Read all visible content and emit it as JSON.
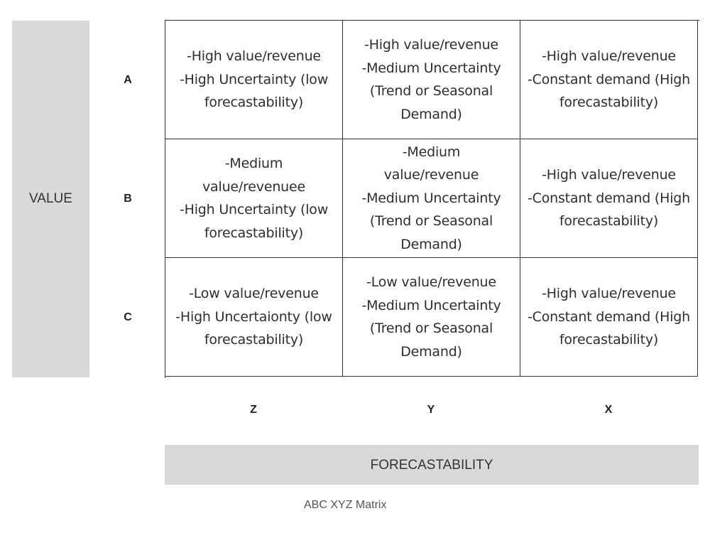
{
  "axes": {
    "vertical_label": "VALUE",
    "horizontal_label": "FORECASTABILITY"
  },
  "rows": [
    "A",
    "B",
    "C"
  ],
  "columns": [
    "Z",
    "Y",
    "X"
  ],
  "cells": [
    [
      {
        "lines": [
          "-High value/revenue",
          "-High Uncertainty (low",
          "forecastability)"
        ]
      },
      {
        "lines": [
          "-High value/revenue",
          "-Medium Uncertainty",
          "(Trend or Seasonal",
          "Demand)"
        ]
      },
      {
        "lines": [
          "-High value/revenue",
          "-Constant demand (High",
          "forecastability)"
        ]
      }
    ],
    [
      {
        "lines": [
          "-Medium",
          "value/revenuee",
          "-High Uncertainty (low",
          "forecastability)"
        ]
      },
      {
        "lines": [
          "-Medium",
          "value/revenue",
          "-Medium Uncertainty",
          "(Trend or Seasonal",
          "Demand)"
        ]
      },
      {
        "lines": [
          "-High value/revenue",
          "-Constant demand (High",
          "forecastability)"
        ]
      }
    ],
    [
      {
        "lines": [
          "-Low value/revenue",
          "-High Uncertaionty (low",
          "forecastability)"
        ]
      },
      {
        "lines": [
          "-Low value/revenue",
          "-Medium Uncertainty",
          "(Trend or Seasonal",
          "Demand)"
        ]
      },
      {
        "lines": [
          "-High value/revenue",
          "-Constant demand (High",
          "forecastability)"
        ]
      }
    ]
  ],
  "caption": "ABC XYZ Matrix"
}
